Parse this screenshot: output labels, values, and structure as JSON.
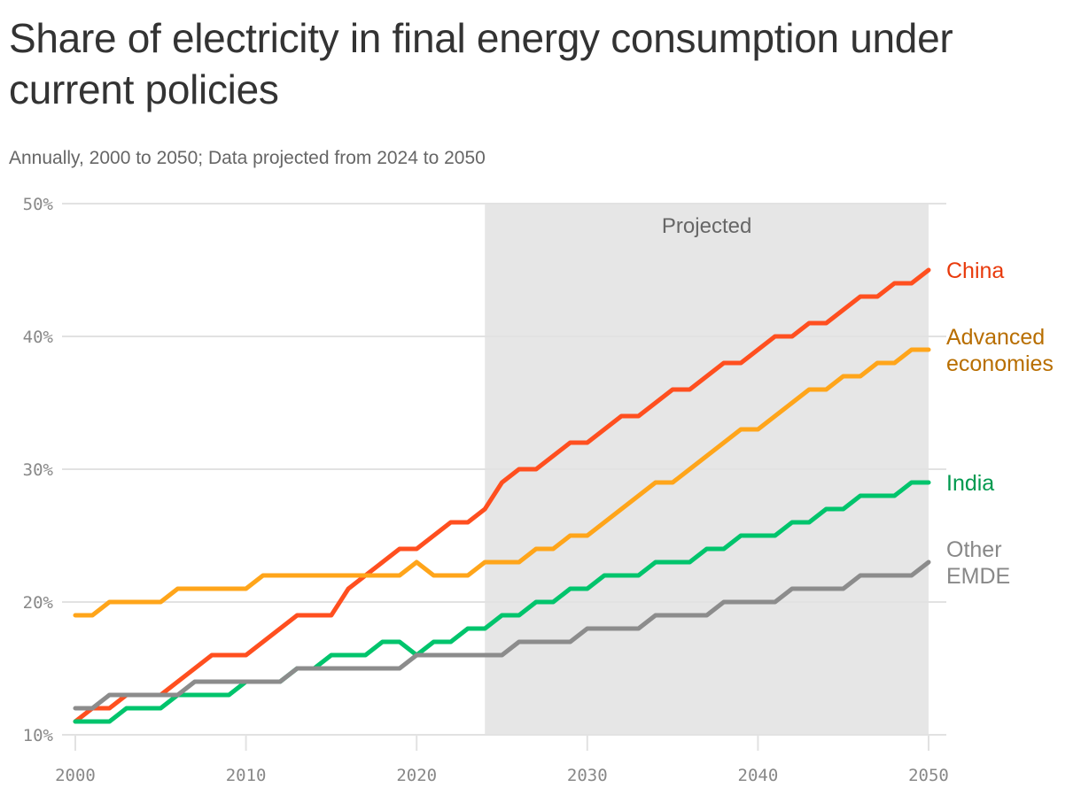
{
  "title": "Share of electricity in final energy consumption under current policies",
  "subtitle": "Annually, 2000 to 2050; Data projected from 2024 to 2050",
  "chart_data": {
    "type": "line",
    "title": "Share of electricity in final energy consumption under current policies",
    "subtitle": "Annually, 2000 to 2050; Data projected from 2024 to 2050",
    "xlabel": "",
    "ylabel": "",
    "xlim": [
      2000,
      2050
    ],
    "ylim": [
      10,
      50
    ],
    "xticks": [
      "2000",
      "2010",
      "2020",
      "2030",
      "2040",
      "2050"
    ],
    "yticks": [
      "10%",
      "20%",
      "30%",
      "40%",
      "50%"
    ],
    "grid": "horizontal",
    "annotation": {
      "label": "Projected",
      "from": 2024,
      "to": 2050,
      "color": "#e6e6e6"
    },
    "x_start": 2000,
    "series": [
      {
        "name": "China",
        "color": "#ff4f1f",
        "label_color": "#e83a0c",
        "label_lines": [
          "China"
        ],
        "values": [
          11,
          12,
          12,
          13,
          13,
          13,
          14,
          15,
          16,
          16,
          16,
          17,
          18,
          19,
          19,
          19,
          21,
          22,
          23,
          24,
          24,
          25,
          26,
          26,
          27,
          29,
          30,
          30,
          31,
          32,
          32,
          33,
          34,
          34,
          35,
          36,
          36,
          37,
          38,
          38,
          39,
          40,
          40,
          41,
          41,
          42,
          43,
          43,
          44,
          44,
          45
        ]
      },
      {
        "name": "Advanced economies",
        "color": "#ffa51a",
        "label_color": "#b86e00",
        "label_lines": [
          "Advanced",
          "economies"
        ],
        "values": [
          19,
          19,
          20,
          20,
          20,
          20,
          21,
          21,
          21,
          21,
          21,
          22,
          22,
          22,
          22,
          22,
          22,
          22,
          22,
          22,
          23,
          22,
          22,
          22,
          23,
          23,
          23,
          24,
          24,
          25,
          25,
          26,
          27,
          28,
          29,
          29,
          30,
          31,
          32,
          33,
          33,
          34,
          35,
          36,
          36,
          37,
          37,
          38,
          38,
          39,
          39
        ]
      },
      {
        "name": "India",
        "color": "#00c46c",
        "label_color": "#00994f",
        "label_lines": [
          "India"
        ],
        "values": [
          11,
          11,
          11,
          12,
          12,
          12,
          13,
          13,
          13,
          13,
          14,
          14,
          14,
          15,
          15,
          16,
          16,
          16,
          17,
          17,
          16,
          17,
          17,
          18,
          18,
          19,
          19,
          20,
          20,
          21,
          21,
          22,
          22,
          22,
          23,
          23,
          23,
          24,
          24,
          25,
          25,
          25,
          26,
          26,
          27,
          27,
          28,
          28,
          28,
          29,
          29
        ]
      },
      {
        "name": "Other EMDE",
        "color": "#8c8c8c",
        "label_color": "#888888",
        "label_lines": [
          "Other",
          "EMDE"
        ],
        "values": [
          12,
          12,
          13,
          13,
          13,
          13,
          13,
          14,
          14,
          14,
          14,
          14,
          14,
          15,
          15,
          15,
          15,
          15,
          15,
          15,
          16,
          16,
          16,
          16,
          16,
          16,
          17,
          17,
          17,
          17,
          18,
          18,
          18,
          18,
          19,
          19,
          19,
          19,
          20,
          20,
          20,
          20,
          21,
          21,
          21,
          21,
          22,
          22,
          22,
          22,
          23
        ]
      }
    ]
  }
}
